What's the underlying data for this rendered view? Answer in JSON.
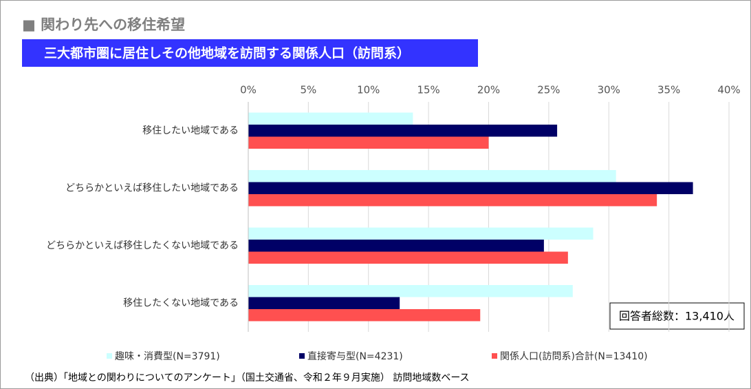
{
  "chart_data": {
    "type": "hbar",
    "title": "■ 関わり先への移住希望",
    "subtitle": "三大都市圏に居住しその他地域を訪問する関係人口（訪問系）",
    "categories": [
      "移住したい地域である",
      "どちらかといえば移住したい地域である",
      "どちらかといえば移住したくない地域である",
      "移住したくない地域である"
    ],
    "series": [
      {
        "name": "趣味・消費型(N=3791)",
        "color": "#ccffff",
        "values": [
          13.7,
          30.6,
          28.7,
          27.0
        ]
      },
      {
        "name": "直接寄与型(N=4231)",
        "color": "#000066",
        "values": [
          25.7,
          37.0,
          24.6,
          12.6
        ]
      },
      {
        "name": "関係人口(訪問系)合計(N=13410)",
        "color": "#ff5050",
        "values": [
          20.0,
          34.0,
          26.6,
          19.3
        ]
      }
    ],
    "xlim": [
      0,
      40
    ],
    "xticks": [
      {
        "value": 0,
        "label": "0%"
      },
      {
        "value": 5,
        "label": "5%"
      },
      {
        "value": 10,
        "label": "10%"
      },
      {
        "value": 15,
        "label": "15%"
      },
      {
        "value": 20,
        "label": "20%"
      },
      {
        "value": 25,
        "label": "25%"
      },
      {
        "value": 30,
        "label": "30%"
      },
      {
        "value": 35,
        "label": "35%"
      },
      {
        "value": 40,
        "label": "40%"
      }
    ],
    "grid": true,
    "annotation": "回答者総数：13,410人",
    "source": "（出典）「地域との関わりについてのアンケート」（国土交通省、令和２年９月実施） 訪問地域数ベース"
  }
}
